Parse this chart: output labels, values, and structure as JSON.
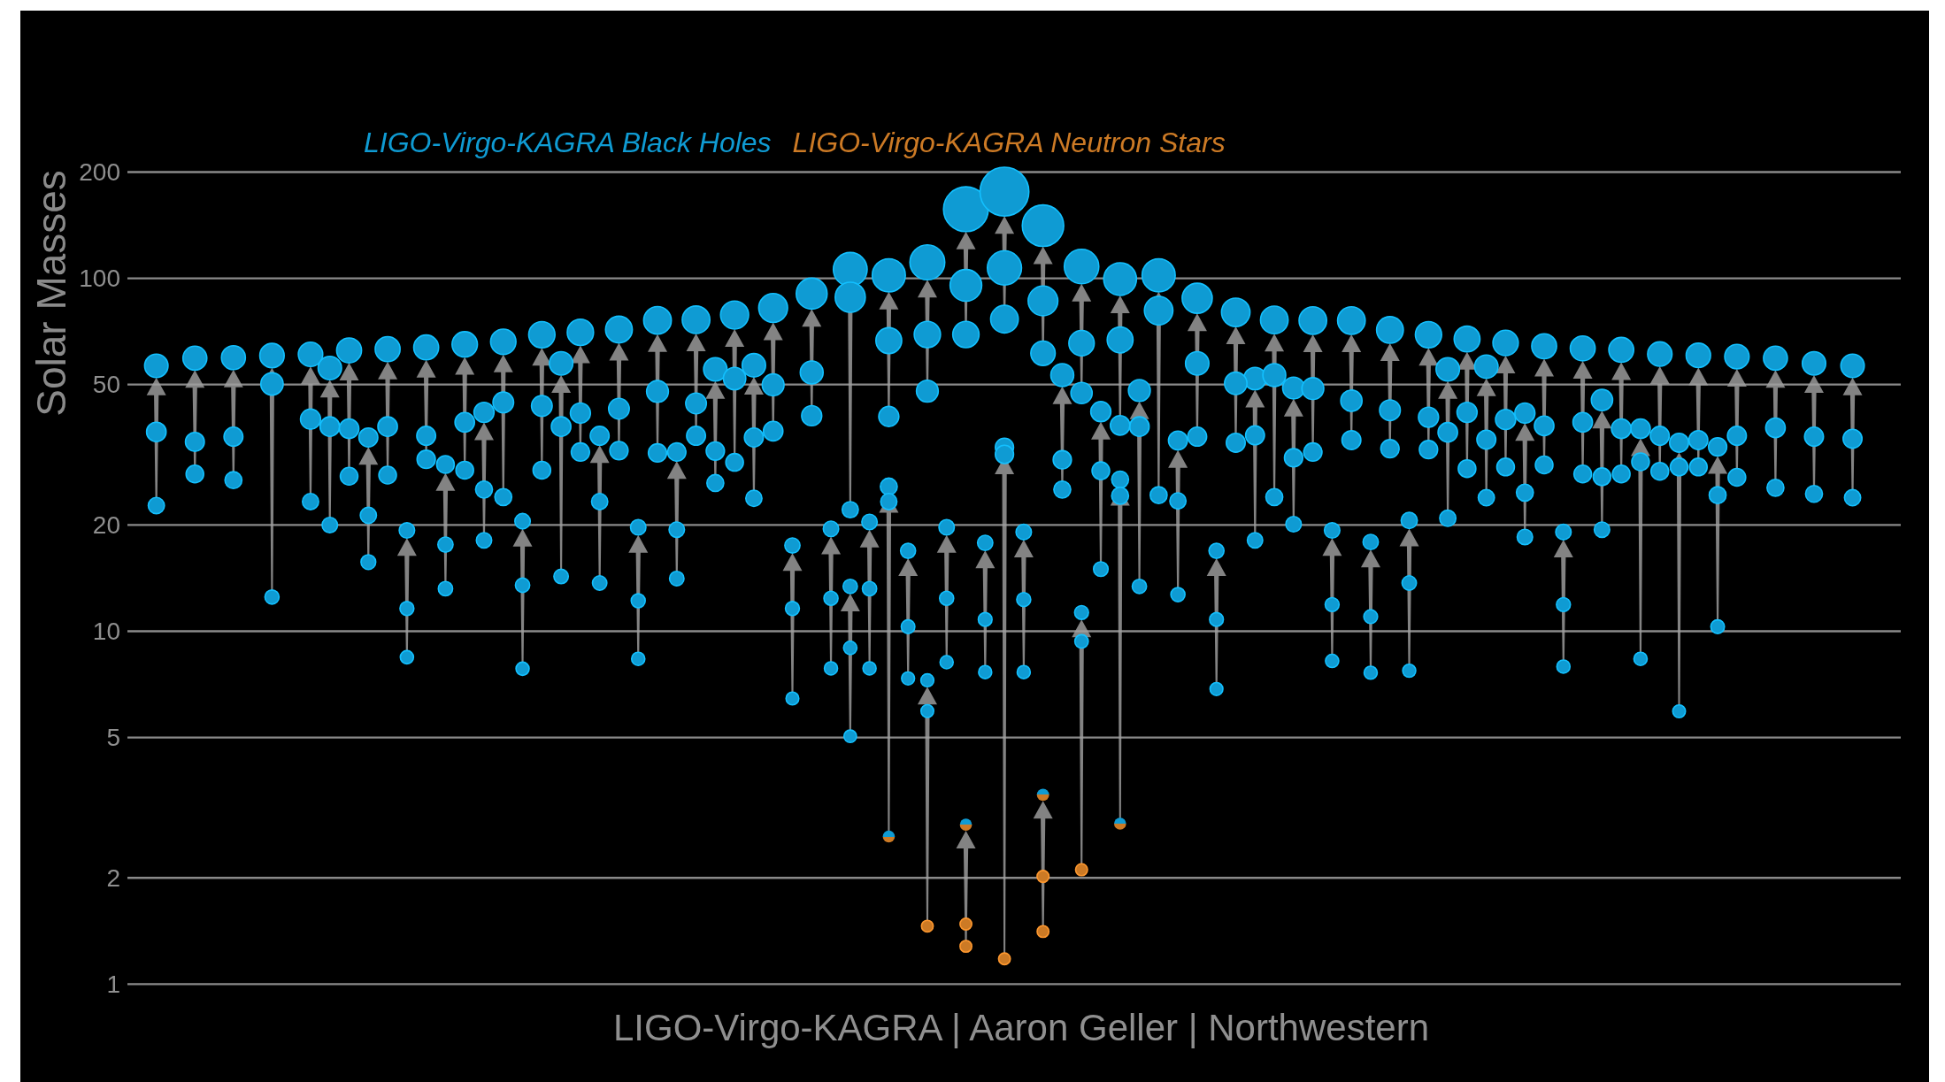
{
  "chart_data": {
    "type": "bubble",
    "ylabel": "Solar Masses",
    "annotations": [
      "LIGO-Virgo-KAGRA | Aaron Geller | Northwestern"
    ],
    "categories": [
      null,
      null,
      null,
      null,
      null,
      null,
      null,
      null,
      null,
      null,
      null,
      null,
      null,
      null,
      null,
      null,
      null,
      null,
      null,
      null,
      null,
      null,
      null,
      null,
      null,
      null,
      null,
      null,
      null,
      null,
      null,
      null,
      null,
      null,
      null,
      null,
      null,
      null,
      null,
      null,
      null,
      null,
      null,
      null,
      null,
      null,
      null,
      null,
      null,
      null,
      null,
      null,
      null,
      null,
      null,
      null,
      null,
      null,
      null,
      null,
      null,
      null,
      null,
      null,
      null,
      null,
      null,
      null,
      null,
      null,
      null,
      null,
      null,
      null,
      null,
      null,
      null,
      null,
      null,
      null,
      null,
      null,
      null,
      null,
      null,
      null,
      null,
      null,
      null,
      null,
      null,
      null
    ],
    "ylim": [
      1,
      200
    ],
    "yticks": [
      1,
      2,
      5,
      10,
      20,
      50,
      100,
      200
    ],
    "log": "y",
    "grid": "y",
    "legend": "top",
    "marker": "circle",
    "tick_labels": "y",
    "series": [
      {
        "name": "LIGO-Virgo-KAGRA Black Holes",
        "color": "#0f9bd3",
        "values": [
          null,
          56.5,
          null,
          59.4,
          null,
          59.6,
          null,
          60.4,
          null,
          60.9,
          55.7,
          62.5,
          35.4,
          63.0,
          19.3,
          63.7,
          29.7,
          65.0,
          41.7,
          66.1,
          20.5,
          69.2,
          57.4,
          70.3,
          35.8,
          71.6,
          19.7,
          76.0,
          32.2,
          76.3,
          55.2,
          78.7,
          56.7,
          82.4,
          17.5,
          90.5,
          19.5,
          106,
          20.4,
          102,
          16.9,
          111,
          19.7,
          157,
          17.8,
          176,
          19.1,
          141,
          53.2,
          108,
          41.9,
          99.5,
          48.1,
          102,
          34.7,
          87.8,
          16.9,
          80.1,
          52.0,
          76.2,
          48.9,
          75.9,
          19.3,
          75.9,
          17.9,
          71.4,
          20.6,
          69.2,
          55.2,
          67.3,
          56.2,
          65.6,
          41.5,
          64.2,
          19.1,
          63.3,
          45.2,
          62.7,
          37.5,
          61.0,
          34.2,
          60.5,
          33.3,
          60.0,
          null,
          59.4,
          null,
          57.4,
          null,
          56.5,
          null,
          null
        ],
        "sizes": [
          null,
          0.23,
          null,
          0.24,
          null,
          0.24,
          null,
          0.25,
          null,
          0.25,
          0.23,
          0.26,
          0.15,
          0.26,
          0.1,
          0.26,
          0.13,
          0.27,
          0.17,
          0.27,
          0.1,
          0.29,
          0.23,
          0.29,
          0.15,
          0.3,
          0.1,
          0.32,
          0.14,
          0.32,
          0.23,
          0.33,
          0.23,
          0.35,
          0.097,
          0.4,
          0.1,
          0.48,
          0.1,
          0.46,
          0.095,
          0.51,
          0.1,
          0.84,
          0.098,
          1,
          0.1,
          0.72,
          0.22,
          0.5,
          0.17,
          0.45,
          0.2,
          0.46,
          0.15,
          0.38,
          0.095,
          0.34,
          0.21,
          0.32,
          0.2,
          0.32,
          0.1,
          0.32,
          0.098,
          0.3,
          0.11,
          0.29,
          0.23,
          0.28,
          0.23,
          0.27,
          0.17,
          0.26,
          0.1,
          0.26,
          0.19,
          0.26,
          0.16,
          0.25,
          0.15,
          0.25,
          0.14,
          0.25,
          null,
          0.24,
          null,
          0.23,
          null,
          0.23,
          null,
          null
        ]
      },
      {
        "color": "#0f9bd3",
        "values": [
          null,
          36.7,
          null,
          34.4,
          null,
          35.6,
          null,
          50.2,
          null,
          39.9,
          38.0,
          37.5,
          21.3,
          38.0,
          11.6,
          35.8,
          17.6,
          39.1,
          25.2,
          44.5,
          13.5,
          43.5,
          38.0,
          41.5,
          23.3,
          42.7,
          12.2,
          47.8,
          19.4,
          44.2,
          32.4,
          52.0,
          35.4,
          49.9,
          11.6,
          54.1,
          12.4,
          88.4,
          13.2,
          66.6,
          10.3,
          69.3,
          12.4,
          95.5,
          10.8,
          107,
          12.3,
          86.3,
          30.6,
          65.5,
          28.5,
          66.9,
          38.0,
          81.0,
          23.4,
          57.4,
          10.8,
          50.4,
          35.9,
          53.2,
          31.0,
          48.7,
          11.9,
          45.0,
          11.0,
          42.3,
          13.7,
          40.4,
          36.6,
          41.7,
          34.9,
          39.8,
          24.7,
          38.2,
          11.9,
          39.1,
          27.4,
          37.5,
          30.2,
          35.8,
          29.2,
          34.8,
          24.3,
          35.8,
          null,
          37.7,
          null,
          35.6,
          null,
          35.1,
          null,
          null
        ],
        "sizes": [
          null,
          0.16,
          null,
          0.15,
          null,
          0.15,
          null,
          0.21,
          null,
          0.17,
          0.16,
          0.16,
          0.11,
          0.16,
          0.082,
          0.15,
          0.097,
          0.16,
          0.12,
          0.18,
          0.086,
          0.18,
          0.16,
          0.17,
          0.11,
          0.18,
          0.083,
          0.2,
          0.1,
          0.18,
          0.14,
          0.21,
          0.15,
          0.2,
          0.082,
          0.22,
          0.084,
          0.38,
          0.086,
          0.28,
          0.078,
          0.29,
          0.084,
          0.42,
          0.08,
          0.49,
          0.083,
          0.37,
          0.14,
          0.27,
          0.13,
          0.28,
          0.16,
          0.34,
          0.11,
          0.23,
          0.08,
          0.21,
          0.15,
          0.22,
          0.14,
          0.2,
          0.082,
          0.19,
          0.08,
          0.18,
          0.087,
          0.17,
          0.16,
          0.17,
          0.15,
          0.17,
          0.12,
          0.16,
          0.082,
          0.16,
          0.13,
          0.16,
          0.13,
          0.15,
          0.13,
          0.15,
          0.12,
          0.15,
          null,
          0.16,
          null,
          0.15,
          null,
          0.15,
          null,
          null
        ]
      },
      {
        "color": "#0f9bd3",
        "values": [
          null,
          22.7,
          null,
          27.9,
          null,
          26.8,
          null,
          12.5,
          null,
          23.3,
          20.0,
          27.5,
          15.7,
          27.7,
          8.44,
          30.7,
          13.2,
          28.6,
          18.1,
          24.0,
          7.83,
          28.6,
          14.3,
          32.2,
          13.7,
          32.5,
          8.35,
          32.0,
          14.1,
          35.8,
          26.3,
          30.1,
          23.8,
          36.9,
          6.45,
          40.8,
          7.85,
          22.1,
          7.85,
          40.6,
          7.35,
          47.9,
          8.17,
          69.3,
          7.66,
          76.6,
          7.66,
          61.3,
          25.2,
          47.3,
          15.0,
          38.3,
          13.4,
          24.3,
          12.7,
          35.6,
          6.86,
          34.2,
          18.1,
          24.0,
          20.1,
          32.2,
          8.24,
          34.8,
          7.63,
          32.9,
          7.73,
          32.7,
          20.9,
          28.9,
          23.9,
          29.2,
          18.5,
          29.6,
          7.94,
          27.9,
          19.4,
          27.9,
          8.35,
          28.4,
          5.93,
          29.2,
          10.3,
          27.3,
          null,
          25.5,
          null,
          24.5,
          null,
          23.9,
          null,
          null
        ],
        "sizes": [
          null,
          0.11,
          null,
          0.13,
          null,
          0.12,
          null,
          0.084,
          null,
          0.11,
          0.1,
          0.13,
          0.092,
          0.13,
          0.074,
          0.14,
          0.086,
          0.13,
          0.099,
          0.12,
          0.073,
          0.13,
          0.088,
          0.14,
          0.087,
          0.14,
          0.074,
          0.14,
          0.088,
          0.15,
          0.12,
          0.13,
          0.11,
          0.16,
          0.069,
          0.17,
          0.073,
          0.11,
          0.073,
          0.17,
          0.071,
          0.2,
          0.073,
          0.29,
          0.072,
          0.32,
          0.072,
          0.25,
          0.12,
          0.19,
          0.09,
          0.16,
          0.086,
          0.12,
          0.084,
          0.15,
          0.07,
          0.15,
          0.099,
          0.12,
          0.1,
          0.14,
          0.074,
          0.15,
          0.072,
          0.14,
          0.072,
          0.14,
          0.11,
          0.13,
          0.11,
          0.13,
          0.1,
          0.13,
          0.073,
          0.13,
          0.1,
          0.13,
          0.074,
          0.13,
          0.068,
          0.13,
          0.078,
          0.13,
          null,
          0.12,
          null,
          0.12,
          null,
          0.11,
          null,
          null
        ]
      },
      {
        "color": "#0f9bd3",
        "values": [
          null,
          null,
          null,
          null,
          null,
          null,
          null,
          null,
          null,
          null,
          null,
          null,
          null,
          null,
          null,
          null,
          null,
          null,
          null,
          null,
          null,
          null,
          null,
          null,
          null,
          null,
          null,
          null,
          null,
          null,
          null,
          null,
          null,
          null,
          null,
          null,
          null,
          13.4,
          null,
          25.7,
          null,
          7.26,
          null,
          null,
          null,
          33.2,
          null,
          null,
          null,
          11.3,
          null,
          26.9,
          null,
          null,
          null,
          null,
          null,
          null,
          null,
          null,
          null,
          null,
          null,
          null,
          null,
          null,
          null,
          null,
          null,
          null,
          null,
          null,
          null,
          null,
          null,
          null,
          null,
          null,
          null,
          null,
          null,
          null,
          null,
          null,
          null,
          null,
          null,
          null,
          null,
          null,
          null,
          null
        ],
        "sizes": [
          null,
          null,
          null,
          null,
          null,
          null,
          null,
          null,
          null,
          null,
          null,
          null,
          null,
          null,
          null,
          null,
          null,
          null,
          null,
          null,
          null,
          null,
          null,
          null,
          null,
          null,
          null,
          null,
          null,
          null,
          null,
          null,
          null,
          null,
          null,
          null,
          null,
          0.086,
          null,
          0.12,
          null,
          0.071,
          null,
          null,
          null,
          0.14,
          null,
          null,
          null,
          0.081,
          null,
          0.12,
          null,
          null,
          null,
          null,
          null,
          null,
          null,
          null,
          null,
          null,
          null,
          null,
          null,
          null,
          null,
          null,
          null,
          null,
          null,
          null,
          null,
          null,
          null,
          null,
          null,
          null,
          null,
          null,
          null,
          null,
          null,
          null,
          null,
          null,
          null,
          null,
          null,
          null,
          null,
          null
        ]
      },
      {
        "color": "#0f9bd3",
        "values": [
          null,
          null,
          null,
          null,
          null,
          null,
          null,
          null,
          null,
          null,
          null,
          null,
          null,
          null,
          null,
          null,
          null,
          null,
          null,
          null,
          null,
          null,
          null,
          null,
          null,
          null,
          null,
          null,
          null,
          null,
          null,
          null,
          null,
          null,
          null,
          null,
          null,
          8.97,
          null,
          23.3,
          null,
          5.94,
          null,
          null,
          null,
          31.7,
          null,
          null,
          null,
          9.36,
          null,
          24.2,
          null,
          null,
          null,
          null,
          null,
          null,
          null,
          null,
          null,
          null,
          null,
          null,
          null,
          null,
          null,
          null,
          null,
          null,
          null,
          null,
          null,
          null,
          null,
          null,
          null,
          null,
          null,
          null,
          null,
          null,
          null,
          null,
          null,
          null,
          null,
          null,
          null,
          null,
          null,
          null
        ],
        "sizes": [
          null,
          null,
          null,
          null,
          null,
          null,
          null,
          null,
          null,
          null,
          null,
          null,
          null,
          null,
          null,
          null,
          null,
          null,
          null,
          null,
          null,
          null,
          null,
          null,
          null,
          null,
          null,
          null,
          null,
          null,
          null,
          null,
          null,
          null,
          null,
          null,
          null,
          0.075,
          null,
          0.11,
          null,
          0.068,
          null,
          null,
          null,
          0.14,
          null,
          null,
          null,
          0.076,
          null,
          0.12,
          null,
          null,
          null,
          null,
          null,
          null,
          null,
          null,
          null,
          null,
          null,
          null,
          null,
          null,
          null,
          null,
          null,
          null,
          null,
          null,
          null,
          null,
          null,
          null,
          null,
          null,
          null,
          null,
          null,
          null,
          null,
          null,
          null,
          null,
          null,
          null,
          null,
          null,
          null,
          null
        ]
      },
      {
        "color": "#0f9bd3",
        "values": [
          null,
          null,
          null,
          null,
          null,
          null,
          null,
          null,
          null,
          null,
          null,
          null,
          null,
          null,
          null,
          null,
          null,
          null,
          null,
          null,
          null,
          null,
          null,
          null,
          null,
          null,
          null,
          null,
          null,
          null,
          null,
          null,
          null,
          null,
          null,
          null,
          null,
          5.04,
          null,
          null,
          null,
          null,
          null,
          null,
          null,
          null,
          null,
          null,
          null,
          null,
          null,
          null,
          null,
          null,
          null,
          null,
          null,
          null,
          null,
          null,
          null,
          null,
          null,
          null,
          null,
          null,
          null,
          null,
          null,
          null,
          null,
          null,
          null,
          null,
          null,
          null,
          null,
          null,
          null,
          null,
          null,
          null,
          null,
          null,
          null,
          null,
          null,
          null,
          null,
          null,
          null,
          null
        ],
        "sizes": [
          null,
          null,
          null,
          null,
          null,
          null,
          null,
          null,
          null,
          null,
          null,
          null,
          null,
          null,
          null,
          null,
          null,
          null,
          null,
          null,
          null,
          null,
          null,
          null,
          null,
          null,
          null,
          null,
          null,
          null,
          null,
          null,
          null,
          null,
          null,
          null,
          null,
          0.066,
          null,
          null,
          null,
          null,
          null,
          null,
          null,
          null,
          null,
          null,
          null,
          null,
          null,
          null,
          null,
          null,
          null,
          null,
          null,
          null,
          null,
          null,
          null,
          null,
          null,
          null,
          null,
          null,
          null,
          null,
          null,
          null,
          null,
          null,
          null,
          null,
          null,
          null,
          null,
          null,
          null,
          null,
          null,
          null,
          null,
          null,
          null,
          null,
          null,
          null,
          null,
          null,
          null,
          null
        ]
      },
      {
        "name": "LIGO-Virgo-KAGRA Neutron Stars",
        "color": "#cc7a25",
        "values": [
          null,
          null,
          null,
          null,
          null,
          null,
          null,
          null,
          null,
          null,
          null,
          null,
          null,
          null,
          null,
          null,
          null,
          null,
          null,
          null,
          null,
          null,
          null,
          null,
          null,
          null,
          null,
          null,
          null,
          null,
          null,
          null,
          null,
          null,
          null,
          null,
          null,
          null,
          null,
          null,
          null,
          1.46,
          null,
          1.28,
          null,
          1.18,
          null,
          1.41,
          null,
          2.11,
          null,
          null,
          null,
          null,
          null,
          null,
          null,
          null,
          null,
          null,
          null,
          null,
          null,
          null,
          null,
          null,
          null,
          null,
          null,
          null,
          null,
          null,
          null,
          null,
          null,
          null,
          null,
          null,
          null,
          null,
          null,
          null,
          null,
          null,
          null,
          null,
          null,
          null,
          null,
          null,
          null,
          null
        ],
        "sizes": [
          null,
          null,
          null,
          null,
          null,
          null,
          null,
          null,
          null,
          null,
          null,
          null,
          null,
          null,
          null,
          null,
          null,
          null,
          null,
          null,
          null,
          null,
          null,
          null,
          null,
          null,
          null,
          null,
          null,
          null,
          null,
          null,
          null,
          null,
          null,
          null,
          null,
          null,
          null,
          null,
          null,
          0.058,
          null,
          0.058,
          null,
          0.058,
          null,
          0.058,
          null,
          0.06,
          null,
          null,
          null,
          null,
          null,
          null,
          null,
          null,
          null,
          null,
          null,
          null,
          null,
          null,
          null,
          null,
          null,
          null,
          null,
          null,
          null,
          null,
          null,
          null,
          null,
          null,
          null,
          null,
          null,
          null,
          null,
          null,
          null,
          null,
          null,
          null,
          null,
          null,
          null,
          null,
          null,
          null
        ]
      },
      {
        "color": "#cc7a25",
        "values": [
          null,
          null,
          null,
          null,
          null,
          null,
          null,
          null,
          null,
          null,
          null,
          null,
          null,
          null,
          null,
          null,
          null,
          null,
          null,
          null,
          null,
          null,
          null,
          null,
          null,
          null,
          null,
          null,
          null,
          null,
          null,
          null,
          null,
          null,
          null,
          null,
          null,
          null,
          null,
          null,
          null,
          null,
          null,
          1.48,
          null,
          null,
          null,
          2.02,
          null,
          null,
          null,
          null,
          null,
          null,
          null,
          null,
          null,
          null,
          null,
          null,
          null,
          null,
          null,
          null,
          null,
          null,
          null,
          null,
          null,
          null,
          null,
          null,
          null,
          null,
          null,
          null,
          null,
          null,
          null,
          null,
          null,
          null,
          null,
          null,
          null,
          null,
          null,
          null,
          null,
          null,
          null,
          null
        ],
        "sizes": [
          null,
          null,
          null,
          null,
          null,
          null,
          null,
          null,
          null,
          null,
          null,
          null,
          null,
          null,
          null,
          null,
          null,
          null,
          null,
          null,
          null,
          null,
          null,
          null,
          null,
          null,
          null,
          null,
          null,
          null,
          null,
          null,
          null,
          null,
          null,
          null,
          null,
          null,
          null,
          null,
          null,
          null,
          null,
          0.058,
          null,
          null,
          null,
          0.06,
          null,
          null,
          null,
          null,
          null,
          null,
          null,
          null,
          null,
          null,
          null,
          null,
          null,
          null,
          null,
          null,
          null,
          null,
          null,
          null,
          null,
          null,
          null,
          null,
          null,
          null,
          null,
          null,
          null,
          null,
          null,
          null,
          null,
          null,
          null,
          null,
          null,
          null,
          null,
          null,
          null,
          null,
          null,
          null
        ]
      },
      {
        "color": "#0f9bd3",
        "values": [
          null,
          null,
          null,
          null,
          null,
          null,
          null,
          null,
          null,
          null,
          null,
          null,
          null,
          null,
          null,
          null,
          null,
          null,
          null,
          null,
          null,
          null,
          null,
          null,
          null,
          null,
          null,
          null,
          null,
          null,
          null,
          null,
          null,
          null,
          null,
          null,
          null,
          null,
          null,
          2.62,
          null,
          null,
          null,
          2.83,
          null,
          null,
          null,
          3.44,
          null,
          null,
          null,
          2.85,
          null,
          null,
          null,
          null,
          null,
          null,
          null,
          null,
          null,
          null,
          null,
          null,
          null,
          null,
          null,
          null,
          null,
          null,
          null,
          null,
          null,
          null,
          null,
          null,
          null,
          null,
          null,
          null,
          null,
          null,
          null,
          null,
          null,
          null,
          null,
          null,
          null,
          null,
          null,
          null
        ],
        "sizes": [
          null,
          null,
          null,
          null,
          null,
          null,
          null,
          null,
          null,
          null,
          null,
          null,
          null,
          null,
          null,
          null,
          null,
          null,
          null,
          null,
          null,
          null,
          null,
          null,
          null,
          null,
          null,
          null,
          null,
          null,
          null,
          null,
          null,
          null,
          null,
          null,
          null,
          null,
          null,
          0.061,
          null,
          null,
          null,
          0.061,
          null,
          null,
          null,
          0.063,
          null,
          null,
          null,
          0.061,
          null,
          null,
          null,
          null,
          null,
          null,
          null,
          null,
          null,
          null,
          null,
          null,
          null,
          null,
          null,
          null,
          null,
          null,
          null,
          null,
          null,
          null,
          null,
          null,
          null,
          null,
          null,
          null,
          null,
          null,
          null,
          null,
          null,
          null,
          null,
          null,
          null,
          null,
          null,
          null
        ]
      }
    ]
  }
}
